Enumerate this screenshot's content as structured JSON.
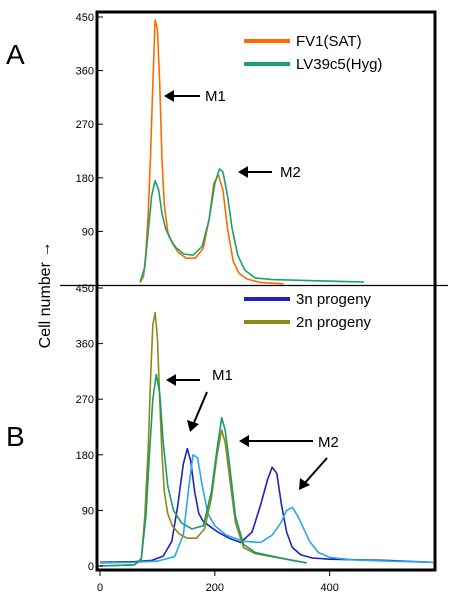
{
  "figure": {
    "ylabel": "Cell number →",
    "panel_a_letter": "A",
    "panel_b_letter": "B"
  },
  "chart_data": [
    {
      "type": "line",
      "panel": "A",
      "title": "",
      "xlabel": "",
      "ylabel": "Cell number →",
      "xlim": [
        0,
        580
      ],
      "ylim": [
        0,
        450
      ],
      "yticks": [
        90,
        180,
        270,
        360,
        450
      ],
      "ytick_labels": [
        "90",
        "180",
        "270",
        "360",
        "450"
      ],
      "grid": false,
      "legend": "top-right",
      "annotations": [
        {
          "label": "M1",
          "x": 100,
          "y": 330
        },
        {
          "label": "M2",
          "x": 215,
          "y": 165
        }
      ],
      "series": [
        {
          "name": "FV1(SAT)",
          "color": "#ff6a00",
          "x": [
            70,
            76,
            80,
            84,
            88,
            92,
            96,
            100,
            104,
            108,
            112,
            118,
            126,
            136,
            150,
            166,
            180,
            190,
            198,
            206,
            214,
            222,
            232,
            242,
            256,
            280,
            320
          ],
          "y": [
            4,
            15,
            55,
            120,
            215,
            335,
            445,
            430,
            340,
            210,
            135,
            90,
            70,
            55,
            45,
            45,
            62,
            110,
            170,
            185,
            160,
            95,
            40,
            20,
            10,
            4,
            2
          ]
        },
        {
          "name": "LV39c5(Hyg)",
          "color": "#1aa070",
          "x": [
            70,
            78,
            84,
            90,
            96,
            102,
            108,
            114,
            122,
            132,
            146,
            162,
            178,
            190,
            200,
            208,
            214,
            222,
            230,
            240,
            252,
            270,
            300,
            340,
            380,
            420,
            460
          ],
          "y": [
            5,
            30,
            90,
            150,
            175,
            160,
            120,
            95,
            78,
            63,
            52,
            50,
            65,
            110,
            170,
            195,
            190,
            150,
            95,
            50,
            25,
            12,
            9,
            8,
            7,
            6,
            5
          ]
        }
      ]
    },
    {
      "type": "line",
      "panel": "B",
      "title": "",
      "xlabel": "",
      "ylabel": "Cell number →",
      "xlim": [
        0,
        580
      ],
      "ylim": [
        0,
        450
      ],
      "xticks": [
        0,
        200,
        400
      ],
      "xtick_labels": [
        "0",
        "200",
        "400"
      ],
      "yticks": [
        0,
        90,
        180,
        270,
        360,
        450
      ],
      "ytick_labels": [
        "0",
        "90",
        "180",
        "270",
        "360",
        "450"
      ],
      "grid": false,
      "legend": "top-right",
      "annotations": [
        {
          "label": "M1",
          "x": 165,
          "y": 250
        },
        {
          "label": "M2",
          "x": 330,
          "y": 170
        }
      ],
      "series": [
        {
          "name": "3n progeny",
          "color": "#2222bb",
          "x": [
            0,
            60,
            90,
            110,
            125,
            135,
            145,
            152,
            158,
            165,
            172,
            180,
            190,
            205,
            225,
            245,
            265,
            280,
            292,
            300,
            308,
            316,
            325,
            335,
            350,
            370,
            400,
            450,
            500,
            550,
            580
          ],
          "y": [
            6,
            7,
            9,
            16,
            40,
            95,
            165,
            190,
            170,
            120,
            85,
            72,
            65,
            55,
            45,
            38,
            55,
            100,
            140,
            160,
            150,
            100,
            55,
            30,
            18,
            13,
            11,
            10,
            9,
            7,
            6
          ]
        },
        {
          "name": "",
          "color": "#2aa8e8",
          "x": [
            0,
            60,
            100,
            130,
            145,
            155,
            162,
            170,
            178,
            188,
            200,
            220,
            250,
            280,
            300,
            315,
            325,
            335,
            345,
            355,
            365,
            380,
            400,
            440,
            500,
            580
          ],
          "y": [
            5,
            6,
            8,
            15,
            50,
            130,
            180,
            175,
            130,
            85,
            65,
            50,
            40,
            38,
            50,
            70,
            90,
            95,
            80,
            60,
            40,
            22,
            14,
            10,
            8,
            6
          ]
        },
        {
          "name": "2n progeny",
          "color": "#8a8a1a",
          "x": [
            0,
            60,
            72,
            78,
            84,
            88,
            92,
            96,
            100,
            104,
            108,
            112,
            118,
            126,
            138,
            152,
            168,
            182,
            194,
            204,
            212,
            218,
            226,
            236,
            250,
            270,
            300,
            330,
            360
          ],
          "y": [
            0,
            2,
            10,
            80,
            190,
            300,
            390,
            410,
            370,
            270,
            180,
            120,
            85,
            65,
            52,
            45,
            45,
            60,
            110,
            180,
            220,
            200,
            140,
            70,
            30,
            20,
            15,
            10,
            5
          ]
        },
        {
          "name": "",
          "color": "#1a9a6a",
          "x": [
            0,
            60,
            72,
            80,
            86,
            92,
            98,
            104,
            110,
            118,
            128,
            142,
            160,
            180,
            194,
            204,
            212,
            218,
            226,
            236,
            250,
            270,
            300,
            330,
            360
          ],
          "y": [
            0,
            2,
            12,
            80,
            180,
            270,
            310,
            280,
            200,
            130,
            90,
            70,
            60,
            65,
            120,
            190,
            240,
            220,
            160,
            80,
            35,
            22,
            16,
            10,
            5
          ]
        }
      ]
    }
  ]
}
